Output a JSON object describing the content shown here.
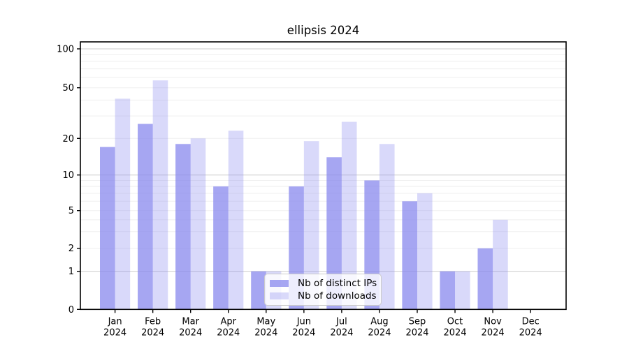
{
  "title": "ellipsis 2024",
  "chart_data": {
    "type": "bar",
    "title": "ellipsis 2024",
    "categories": [
      "Jan 2024",
      "Feb 2024",
      "Mar 2024",
      "Apr 2024",
      "May 2024",
      "Jun 2024",
      "Jul 2024",
      "Aug 2024",
      "Sep 2024",
      "Oct 2024",
      "Nov 2024",
      "Dec 2024"
    ],
    "series": [
      {
        "name": "Nb of distinct IPs",
        "color": "#a9a9f2",
        "base_color": "#8888ee",
        "opacity": 0.75,
        "values": [
          17,
          26,
          18,
          8,
          1,
          8,
          14,
          9,
          6,
          1,
          2,
          0
        ]
      },
      {
        "name": "Nb of downloads",
        "color": "#dcdcf9",
        "base_color": "#8888ee",
        "opacity": 0.32,
        "values": [
          41,
          57,
          20,
          23,
          1,
          19,
          27,
          18,
          7,
          1,
          4,
          0
        ]
      }
    ],
    "xlabel": "",
    "ylabel": "",
    "yticks": [
      100,
      50,
      20,
      10,
      5,
      2,
      1,
      0
    ],
    "ylim": [
      0,
      100
    ],
    "yscale": "log-like above 1, linear segment 0-1",
    "grid": true,
    "gridline_major_color": "#cccccc",
    "gridline_minor_color": "#efefef",
    "legend_position": "lower center"
  }
}
